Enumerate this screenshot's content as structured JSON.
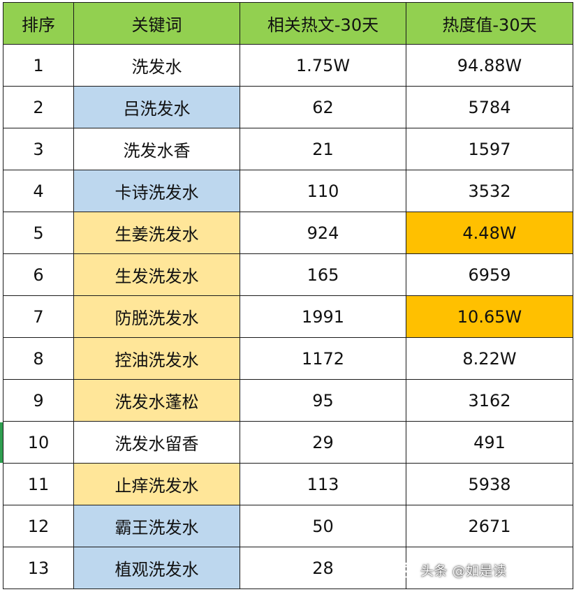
{
  "table": {
    "headers": [
      "排序",
      "关键词",
      "相关热文-30天",
      "热度值-30天"
    ],
    "rows": [
      {
        "rank": "1",
        "keyword": "洗发水",
        "articles": "1.75W",
        "heat": "94.88W",
        "keyword_color": "none",
        "heat_color": "none"
      },
      {
        "rank": "2",
        "keyword": "吕洗发水",
        "articles": "62",
        "heat": "5784",
        "keyword_color": "blue",
        "heat_color": "none"
      },
      {
        "rank": "3",
        "keyword": "洗发水香",
        "articles": "21",
        "heat": "1597",
        "keyword_color": "none",
        "heat_color": "none"
      },
      {
        "rank": "4",
        "keyword": "卡诗洗发水",
        "articles": "110",
        "heat": "3532",
        "keyword_color": "blue",
        "heat_color": "none"
      },
      {
        "rank": "5",
        "keyword": "生姜洗发水",
        "articles": "924",
        "heat": "4.48W",
        "keyword_color": "yellow",
        "heat_color": "orange"
      },
      {
        "rank": "6",
        "keyword": "生发洗发水",
        "articles": "165",
        "heat": "6959",
        "keyword_color": "yellow",
        "heat_color": "none"
      },
      {
        "rank": "7",
        "keyword": "防脱洗发水",
        "articles": "1991",
        "heat": "10.65W",
        "keyword_color": "yellow",
        "heat_color": "orange"
      },
      {
        "rank": "8",
        "keyword": "控油洗发水",
        "articles": "1172",
        "heat": "8.22W",
        "keyword_color": "yellow",
        "heat_color": "none"
      },
      {
        "rank": "9",
        "keyword": "洗发水蓬松",
        "articles": "95",
        "heat": "3162",
        "keyword_color": "yellow",
        "heat_color": "none"
      },
      {
        "rank": "10",
        "keyword": "洗发水留香",
        "articles": "29",
        "heat": "491",
        "keyword_color": "none",
        "heat_color": "none"
      },
      {
        "rank": "11",
        "keyword": "止痒洗发水",
        "articles": "113",
        "heat": "5938",
        "keyword_color": "yellow",
        "heat_color": "none"
      },
      {
        "rank": "12",
        "keyword": "霸王洗发水",
        "articles": "50",
        "heat": "2671",
        "keyword_color": "blue",
        "heat_color": "none"
      },
      {
        "rank": "13",
        "keyword": "植观洗发水",
        "articles": "28",
        "heat": "",
        "keyword_color": "blue",
        "heat_color": "none"
      }
    ]
  },
  "colors": {
    "header_bg": "#92d050",
    "blue": "#bdd7ee",
    "yellow": "#ffe699",
    "orange": "#ffc000"
  },
  "watermark": {
    "icon": "wechat-icon",
    "text": "头条 @如是读"
  }
}
